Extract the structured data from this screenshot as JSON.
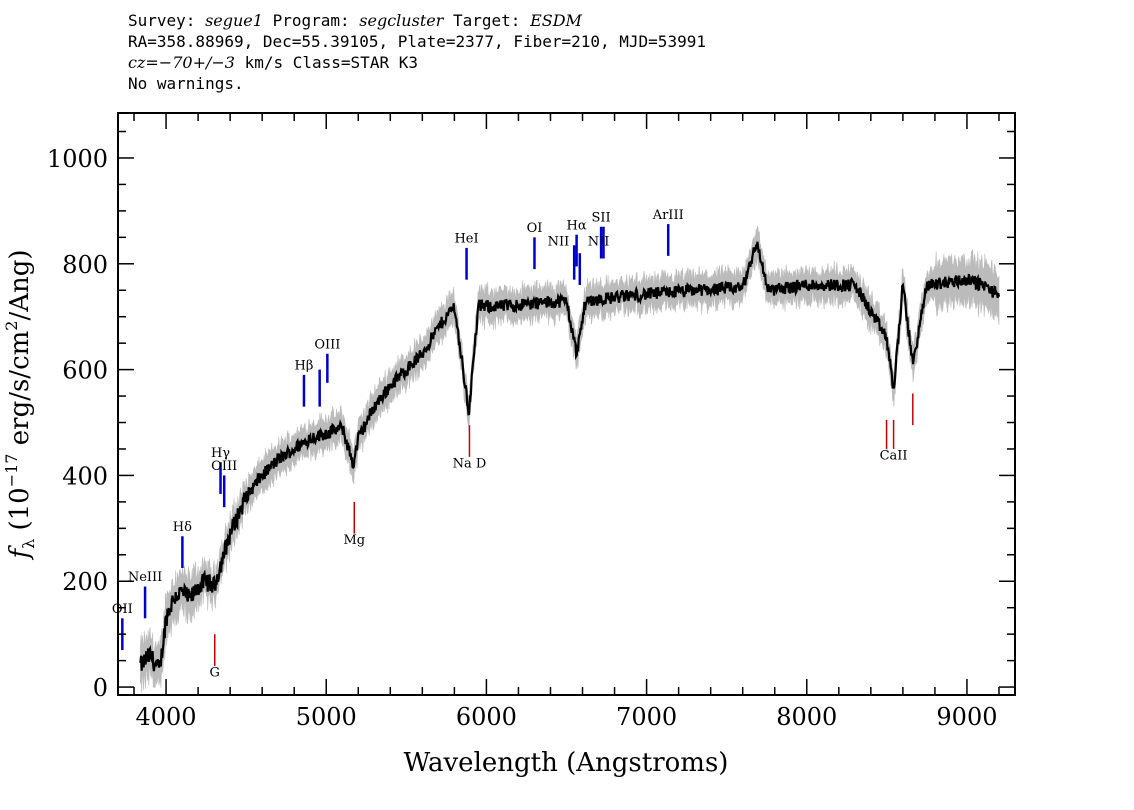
{
  "header": {
    "survey_label": "Survey:",
    "survey": "segue1",
    "program_label": "Program:",
    "program": "segcluster",
    "target_label": "Target:",
    "target": "ESDM",
    "line2": "RA=358.88969, Dec=55.39105, Plate=2377, Fiber=210, MJD=53991",
    "cz_label": "cz=",
    "cz_value": "−70+/−3",
    "cz_rest": " km/s Class=STAR K3",
    "line4": "No warnings."
  },
  "chart_data": {
    "type": "line",
    "xlabel": "Wavelength (Angstroms)",
    "ylabel_prefix": "f",
    "ylabel_sub": "λ",
    "ylabel_main": " (10",
    "ylabel_exp": "−17",
    "ylabel_units": " erg/s/cm",
    "ylabel_exp2": "2",
    "ylabel_end": "/Ang)",
    "xlim": [
      3700,
      9300
    ],
    "ylim": [
      -15,
      1085
    ],
    "xticks": [
      4000,
      5000,
      6000,
      7000,
      8000,
      9000
    ],
    "yticks": [
      0,
      200,
      400,
      600,
      800,
      1000
    ],
    "xtick_labels": [
      "4000",
      "5000",
      "6000",
      "7000",
      "8000",
      "9000"
    ],
    "ytick_labels": [
      "0",
      "200",
      "400",
      "600",
      "800",
      "1000"
    ],
    "colors": {
      "flux": "#000000",
      "error": "#bbbbbb",
      "emission": "#0000cc",
      "absorption": "#cc0000"
    },
    "flux_anchors": [
      [
        3840,
        40
      ],
      [
        3900,
        60
      ],
      [
        3960,
        30
      ],
      [
        4000,
        130
      ],
      [
        4050,
        170
      ],
      [
        4100,
        180
      ],
      [
        4150,
        165
      ],
      [
        4200,
        190
      ],
      [
        4250,
        200
      ],
      [
        4300,
        190
      ],
      [
        4340,
        230
      ],
      [
        4400,
        290
      ],
      [
        4500,
        360
      ],
      [
        4600,
        400
      ],
      [
        4700,
        430
      ],
      [
        4800,
        450
      ],
      [
        4900,
        470
      ],
      [
        5000,
        480
      ],
      [
        5100,
        490
      ],
      [
        5170,
        420
      ],
      [
        5200,
        470
      ],
      [
        5300,
        530
      ],
      [
        5400,
        570
      ],
      [
        5500,
        600
      ],
      [
        5600,
        630
      ],
      [
        5700,
        680
      ],
      [
        5800,
        720
      ],
      [
        5890,
        520
      ],
      [
        5950,
        720
      ],
      [
        6100,
        720
      ],
      [
        6300,
        725
      ],
      [
        6500,
        730
      ],
      [
        6563,
        630
      ],
      [
        6620,
        730
      ],
      [
        6900,
        740
      ],
      [
        7300,
        750
      ],
      [
        7600,
        755
      ],
      [
        7686,
        840
      ],
      [
        7760,
        750
      ],
      [
        8000,
        760
      ],
      [
        8300,
        760
      ],
      [
        8498,
        660
      ],
      [
        8542,
        560
      ],
      [
        8600,
        760
      ],
      [
        8662,
        610
      ],
      [
        8750,
        760
      ],
      [
        9000,
        770
      ],
      [
        9100,
        760
      ],
      [
        9200,
        740
      ]
    ],
    "emission_lines": [
      {
        "name": "OII",
        "x": 3727,
        "y0": 70,
        "y1": 130,
        "label_y": 140
      },
      {
        "name": "NeIII",
        "x": 3869,
        "y0": 130,
        "y1": 190,
        "label_y": 200
      },
      {
        "name": "Hδ",
        "x": 4102,
        "y0": 225,
        "y1": 285,
        "label_y": 295
      },
      {
        "name": "Hγ",
        "x": 4340,
        "y0": 365,
        "y1": 425,
        "label_y": 435
      },
      {
        "name": "OIII",
        "x": 4363,
        "y0": 340,
        "y1": 400,
        "label_y": 410
      },
      {
        "name": "Hβ",
        "x": 4861,
        "y0": 530,
        "y1": 590,
        "label_y": 600
      },
      {
        "name": "OIII",
        "x": 4959,
        "y0": 530,
        "y1": 600,
        "label_y": 0
      },
      {
        "name": "OIII",
        "x": 5007,
        "y0": 575,
        "y1": 630,
        "label_y": 640
      },
      {
        "name": "HeI",
        "x": 5876,
        "y0": 770,
        "y1": 830,
        "label_y": 840
      },
      {
        "name": "OI",
        "x": 6300,
        "y0": 790,
        "y1": 850,
        "label_y": 860
      },
      {
        "name": "NII",
        "x": 6548,
        "y0": 770,
        "y1": 835,
        "label_y": 0
      },
      {
        "name": "NII",
        "x": 6450,
        "y0": 0,
        "y1": 0,
        "label_y": 835
      },
      {
        "name": "Hα",
        "x": 6563,
        "y0": 795,
        "y1": 855,
        "label_y": 865
      },
      {
        "name": "NII",
        "x": 6583,
        "y0": 760,
        "y1": 820,
        "label_y": 0
      },
      {
        "name": "SII",
        "x": 6716,
        "y0": 810,
        "y1": 870,
        "label_y": 880
      },
      {
        "name": "SII",
        "x": 6731,
        "y0": 810,
        "y1": 870,
        "label_y": 0
      },
      {
        "name": "NII",
        "x": 6700,
        "y0": 0,
        "y1": 0,
        "label_y": 835
      },
      {
        "name": "ArIII",
        "x": 7135,
        "y0": 815,
        "y1": 875,
        "label_y": 885
      }
    ],
    "absorption_lines": [
      {
        "name": "G",
        "x": 4304,
        "y0": 40,
        "y1": 100,
        "label_y": 20
      },
      {
        "name": "Mg",
        "x": 5175,
        "y0": 290,
        "y1": 350,
        "label_y": 270
      },
      {
        "name": "Na D",
        "x": 5894,
        "y0": 435,
        "y1": 495,
        "label_y": 415
      },
      {
        "name": "CaII",
        "x": 8498,
        "y0": 450,
        "y1": 505,
        "label_y": 0
      },
      {
        "name": "CaII",
        "x": 8542,
        "y0": 450,
        "y1": 505,
        "label_y": 430
      },
      {
        "name": "CaII",
        "x": 8662,
        "y0": 495,
        "y1": 555,
        "label_y": 0
      }
    ]
  }
}
